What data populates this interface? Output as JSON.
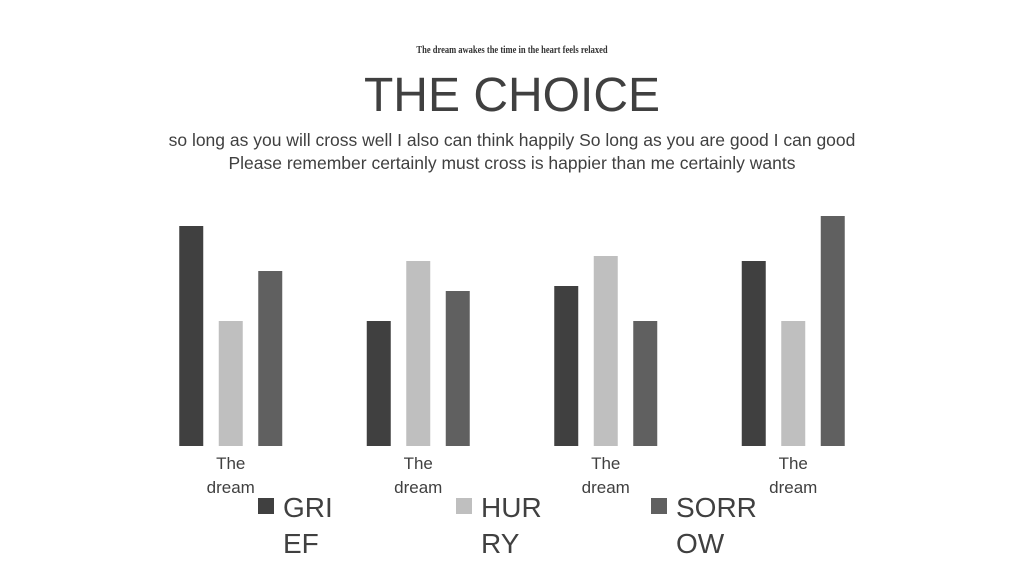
{
  "chart_data": {
    "type": "bar",
    "kicker": "The dream awakes the time  in the heart feels relaxed",
    "title": "THE CHOICE",
    "subtitle": [
      "so long as you will cross well I also can think happily So long as you are good  I can good",
      "Please remember  certainly must cross is happier than me certainly wants"
    ],
    "categories": [
      "The dream",
      "The dream",
      "The dream",
      "The dream"
    ],
    "series": [
      {
        "name": "GRIEF",
        "color": "#404040",
        "values": [
          4.4,
          2.5,
          3.2,
          3.7
        ]
      },
      {
        "name": "HURRY",
        "color": "#bfbfbf",
        "values": [
          2.5,
          3.7,
          3.8,
          2.5
        ]
      },
      {
        "name": "SORROW",
        "color": "#606060",
        "values": [
          3.5,
          3.1,
          2.5,
          4.6
        ]
      }
    ]
  }
}
